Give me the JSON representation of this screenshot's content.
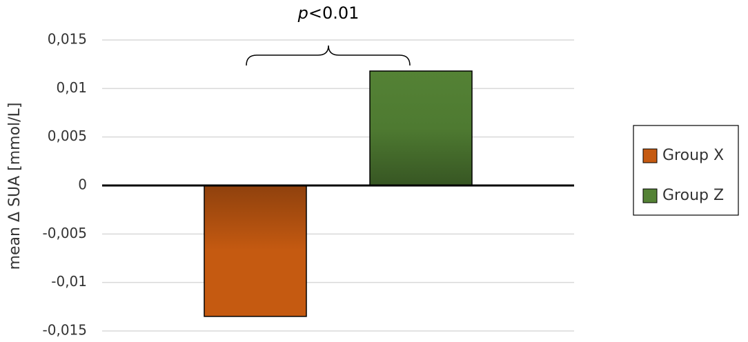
{
  "chart_data": {
    "type": "bar",
    "y_label": "mean Δ SUA [mmol/L]",
    "annotation": "p<0.01",
    "series": [
      {
        "name": "Group X",
        "color": "#c55a11",
        "values": [
          -0.0135
        ]
      },
      {
        "name": "Group Z",
        "color": "#548235",
        "values": [
          0.0118
        ]
      }
    ],
    "ylim": [
      -0.015,
      0.015
    ],
    "yticks": [
      {
        "value": -0.015,
        "label": "-0,015"
      },
      {
        "value": -0.01,
        "label": "-0,01"
      },
      {
        "value": -0.005,
        "label": "-0,005"
      },
      0,
      {
        "value": 0.005,
        "label": "0,005"
      },
      {
        "value": 0.01,
        "label": "0,01"
      },
      {
        "value": 0.015,
        "label": "0,015"
      }
    ],
    "grid": true,
    "legend": "right"
  }
}
